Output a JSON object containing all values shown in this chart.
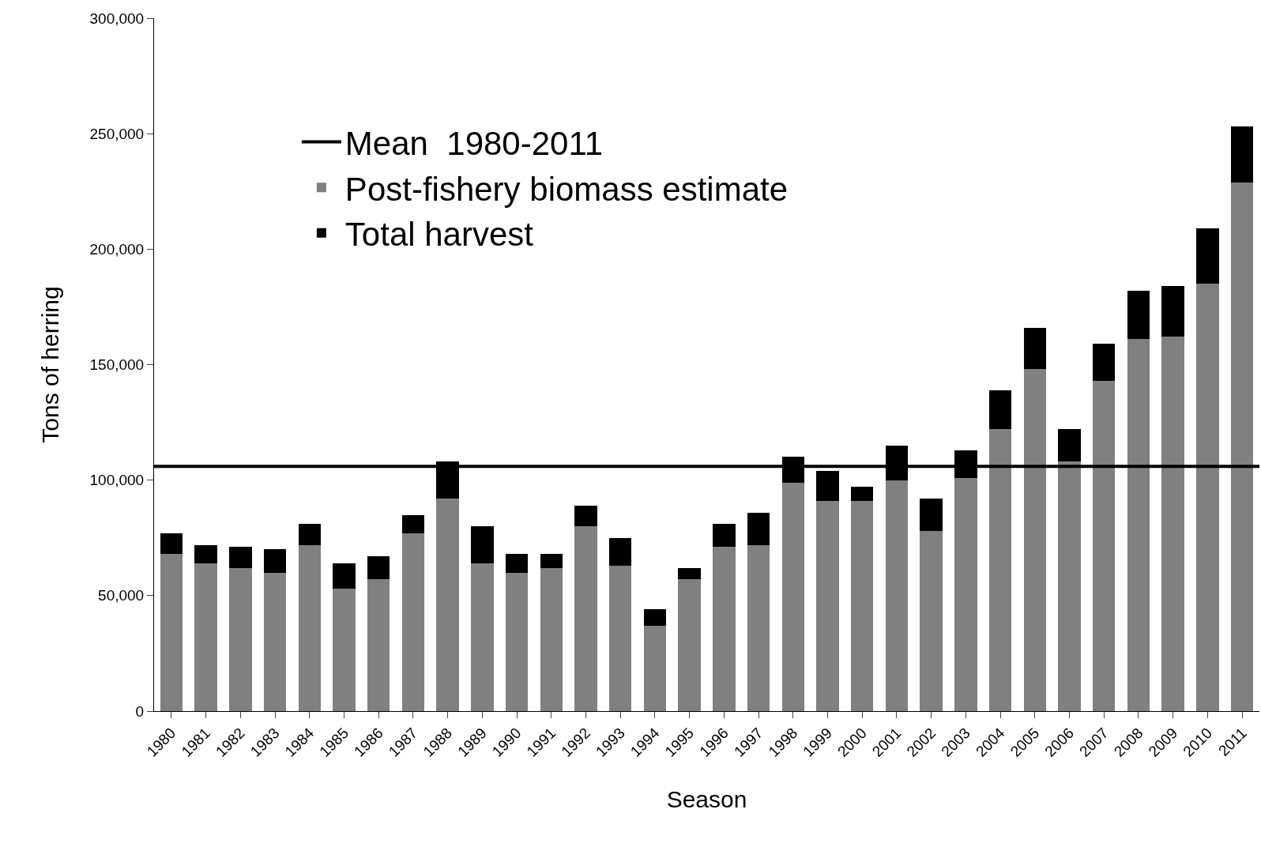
{
  "chart_data": {
    "type": "bar",
    "stacked": true,
    "xlabel": "Season",
    "ylabel": "Tons of herring",
    "categories": [
      "1980",
      "1981",
      "1982",
      "1983",
      "1984",
      "1985",
      "1986",
      "1987",
      "1988",
      "1989",
      "1990",
      "1991",
      "1992",
      "1993",
      "1994",
      "1995",
      "1996",
      "1997",
      "1998",
      "1999",
      "2000",
      "2001",
      "2002",
      "2003",
      "2004",
      "2005",
      "2006",
      "2007",
      "2008",
      "2009",
      "2010",
      "2011"
    ],
    "series": [
      {
        "name": "Post-fishery biomass estimate",
        "color": "#808080",
        "values": [
          68000,
          64000,
          62000,
          60000,
          72000,
          53000,
          57000,
          77000,
          92000,
          64000,
          60000,
          62000,
          80000,
          63000,
          37000,
          57000,
          71000,
          72000,
          99000,
          91000,
          91000,
          100000,
          78000,
          101000,
          122000,
          148000,
          108000,
          143000,
          161000,
          162000,
          185000,
          229000
        ]
      },
      {
        "name": "Total harvest",
        "color": "#000000",
        "values": [
          9000,
          8000,
          9000,
          10000,
          9000,
          11000,
          10000,
          8000,
          16000,
          16000,
          8000,
          6000,
          9000,
          12000,
          7000,
          5000,
          10000,
          14000,
          11000,
          13000,
          6000,
          15000,
          14000,
          12000,
          17000,
          18000,
          14000,
          16000,
          21000,
          22000,
          24000,
          24000
        ]
      }
    ],
    "ref_lines": [
      {
        "axis": "y",
        "value": 106000,
        "label": "Mean  1980-2011",
        "color": "#000000",
        "line_style": "solid"
      }
    ],
    "ylim": [
      0,
      300000
    ],
    "yticks": [
      {
        "value": 0,
        "label": "0"
      },
      {
        "value": 50000,
        "label": "50,000"
      },
      {
        "value": 100000,
        "label": "100,000"
      },
      {
        "value": 150000,
        "label": "150,000"
      },
      {
        "value": 200000,
        "label": "200,000"
      },
      {
        "value": 250000,
        "label": "250,000"
      },
      {
        "value": 300000,
        "label": "300,000"
      }
    ],
    "grid": false,
    "legend": "top left"
  }
}
